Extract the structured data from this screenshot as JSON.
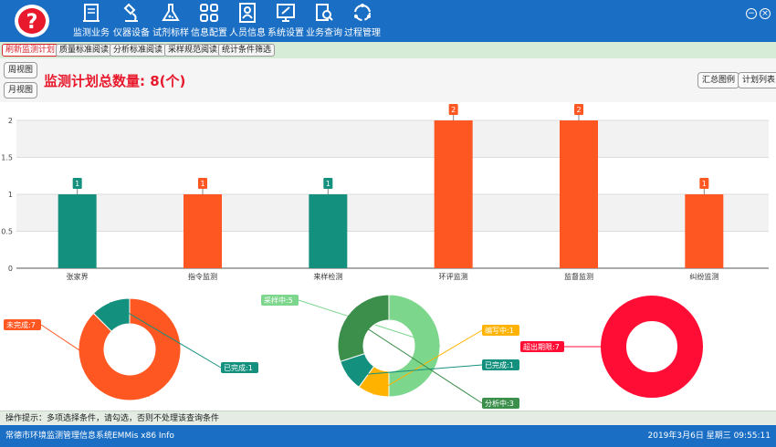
{
  "nav": [
    {
      "label": "监测业务",
      "icon": "book-icon"
    },
    {
      "label": "仪器设备",
      "icon": "microscope-icon"
    },
    {
      "label": "试剂标样",
      "icon": "flask-icon"
    },
    {
      "label": "信息配置",
      "icon": "grid-icon"
    },
    {
      "label": "人员信息",
      "icon": "person-card-icon"
    },
    {
      "label": "系统设置",
      "icon": "settings-icon"
    },
    {
      "label": "业务查询",
      "icon": "search-doc-icon"
    },
    {
      "label": "过程管理",
      "icon": "cycle-icon"
    }
  ],
  "tabs": [
    "刷新监测计划",
    "质量标准阅读",
    "分析标准阅读",
    "采样规范阅读",
    "统计条件筛选"
  ],
  "view_buttons": {
    "week": "周视图",
    "month": "月视图"
  },
  "plan_title": "监测计划总数量: 8(个)",
  "right_buttons": {
    "summary": "汇总图例",
    "plan_list": "计划列表"
  },
  "chart_data": [
    {
      "type": "bar",
      "categories": [
        "张家界",
        "指令监测",
        "来样检测",
        "环评监测",
        "监督监测",
        "纠纷监测"
      ],
      "values": [
        1,
        1,
        1,
        2,
        2,
        1
      ],
      "colors": [
        "#14907e",
        "#ff5722",
        "#14907e",
        "#ff5722",
        "#ff5722",
        "#ff5722"
      ],
      "yticks": [
        "0",
        "0.5",
        "1",
        "1.5",
        "2"
      ],
      "ylim": [
        0,
        2
      ]
    },
    {
      "type": "pie",
      "slices": [
        {
          "label": "未完成:7",
          "value": 7,
          "color": "#ff5722"
        },
        {
          "label": "已完成:1",
          "value": 1,
          "color": "#14907e"
        }
      ]
    },
    {
      "type": "pie",
      "slices": [
        {
          "label": "采样中:5",
          "value": 5,
          "color": "#7cd68c"
        },
        {
          "label": "编写中:1",
          "value": 1,
          "color": "#ffb300"
        },
        {
          "label": "已完成:1",
          "value": 1,
          "color": "#14907e"
        },
        {
          "label": "分析中:3",
          "value": 3,
          "color": "#3b8f4b"
        }
      ]
    },
    {
      "type": "pie",
      "slices": [
        {
          "label": "超出期限:7",
          "value": 7,
          "color": "#ff0d34"
        }
      ]
    }
  ],
  "hint": "操作提示：多项选择条件，请勾选，否则不处理该查询条件",
  "status": {
    "app": "常德市环境监测管理信息系统EMMis   x86   Info",
    "date": "2019年3月6日    星期三     09:55:11"
  }
}
